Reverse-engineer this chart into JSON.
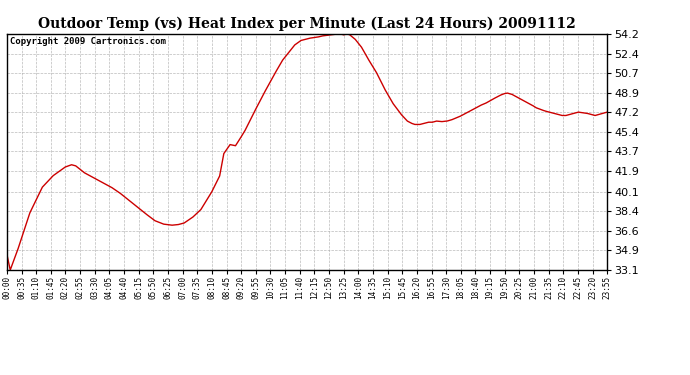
{
  "title": "Outdoor Temp (vs) Heat Index per Minute (Last 24 Hours) 20091112",
  "copyright": "Copyright 2009 Cartronics.com",
  "line_color": "#cc0000",
  "background_color": "#ffffff",
  "plot_bg_color": "#ffffff",
  "grid_color": "#aaaaaa",
  "ylim": [
    33.1,
    54.2
  ],
  "yticks": [
    33.1,
    34.9,
    36.6,
    38.4,
    40.1,
    41.9,
    43.7,
    45.4,
    47.2,
    48.9,
    50.7,
    52.4,
    54.2
  ],
  "xtick_labels": [
    "00:00",
    "00:35",
    "01:10",
    "01:45",
    "02:20",
    "02:55",
    "03:30",
    "04:05",
    "04:40",
    "05:15",
    "05:50",
    "06:25",
    "07:00",
    "07:35",
    "08:10",
    "08:45",
    "09:20",
    "09:55",
    "10:30",
    "11:05",
    "11:40",
    "12:15",
    "12:50",
    "13:25",
    "14:00",
    "14:35",
    "15:10",
    "15:45",
    "16:20",
    "16:55",
    "17:30",
    "18:05",
    "18:40",
    "19:15",
    "19:50",
    "20:25",
    "21:00",
    "21:35",
    "22:10",
    "22:45",
    "23:20",
    "23:55"
  ],
  "keypoints": [
    [
      0,
      34.5
    ],
    [
      8,
      33.1
    ],
    [
      25,
      34.8
    ],
    [
      55,
      38.2
    ],
    [
      85,
      40.5
    ],
    [
      110,
      41.5
    ],
    [
      140,
      42.3
    ],
    [
      155,
      42.5
    ],
    [
      165,
      42.4
    ],
    [
      185,
      41.8
    ],
    [
      210,
      41.3
    ],
    [
      230,
      40.9
    ],
    [
      250,
      40.5
    ],
    [
      270,
      40.0
    ],
    [
      290,
      39.4
    ],
    [
      310,
      38.8
    ],
    [
      330,
      38.2
    ],
    [
      355,
      37.5
    ],
    [
      375,
      37.2
    ],
    [
      395,
      37.1
    ],
    [
      410,
      37.15
    ],
    [
      425,
      37.3
    ],
    [
      445,
      37.8
    ],
    [
      465,
      38.5
    ],
    [
      490,
      40.0
    ],
    [
      510,
      41.5
    ],
    [
      520,
      43.5
    ],
    [
      535,
      44.3
    ],
    [
      548,
      44.2
    ],
    [
      555,
      44.6
    ],
    [
      570,
      45.5
    ],
    [
      590,
      47.0
    ],
    [
      615,
      48.8
    ],
    [
      640,
      50.5
    ],
    [
      660,
      51.8
    ],
    [
      675,
      52.5
    ],
    [
      690,
      53.2
    ],
    [
      705,
      53.6
    ],
    [
      715,
      53.7
    ],
    [
      725,
      53.8
    ],
    [
      735,
      53.85
    ],
    [
      745,
      53.9
    ],
    [
      755,
      54.0
    ],
    [
      765,
      54.05
    ],
    [
      775,
      54.1
    ],
    [
      785,
      54.15
    ],
    [
      795,
      54.2
    ],
    [
      800,
      54.18
    ],
    [
      808,
      54.1
    ],
    [
      815,
      54.2
    ],
    [
      822,
      54.1
    ],
    [
      835,
      53.7
    ],
    [
      850,
      53.0
    ],
    [
      865,
      52.0
    ],
    [
      885,
      50.8
    ],
    [
      905,
      49.3
    ],
    [
      925,
      48.0
    ],
    [
      945,
      47.0
    ],
    [
      960,
      46.4
    ],
    [
      970,
      46.2
    ],
    [
      978,
      46.1
    ],
    [
      990,
      46.1
    ],
    [
      1000,
      46.2
    ],
    [
      1010,
      46.3
    ],
    [
      1020,
      46.3
    ],
    [
      1030,
      46.4
    ],
    [
      1042,
      46.35
    ],
    [
      1055,
      46.4
    ],
    [
      1065,
      46.5
    ],
    [
      1075,
      46.65
    ],
    [
      1085,
      46.8
    ],
    [
      1095,
      47.0
    ],
    [
      1105,
      47.2
    ],
    [
      1120,
      47.5
    ],
    [
      1135,
      47.8
    ],
    [
      1148,
      48.0
    ],
    [
      1162,
      48.3
    ],
    [
      1172,
      48.5
    ],
    [
      1182,
      48.7
    ],
    [
      1192,
      48.85
    ],
    [
      1200,
      48.9
    ],
    [
      1210,
      48.8
    ],
    [
      1220,
      48.6
    ],
    [
      1230,
      48.4
    ],
    [
      1240,
      48.2
    ],
    [
      1250,
      48.0
    ],
    [
      1260,
      47.8
    ],
    [
      1268,
      47.6
    ],
    [
      1275,
      47.5
    ],
    [
      1282,
      47.4
    ],
    [
      1290,
      47.3
    ],
    [
      1300,
      47.2
    ],
    [
      1310,
      47.1
    ],
    [
      1320,
      47.0
    ],
    [
      1330,
      46.9
    ],
    [
      1340,
      46.9
    ],
    [
      1350,
      47.0
    ],
    [
      1360,
      47.1
    ],
    [
      1370,
      47.2
    ],
    [
      1380,
      47.15
    ],
    [
      1390,
      47.1
    ],
    [
      1400,
      47.0
    ],
    [
      1410,
      46.9
    ],
    [
      1420,
      47.0
    ],
    [
      1430,
      47.1
    ],
    [
      1439,
      47.2
    ]
  ]
}
